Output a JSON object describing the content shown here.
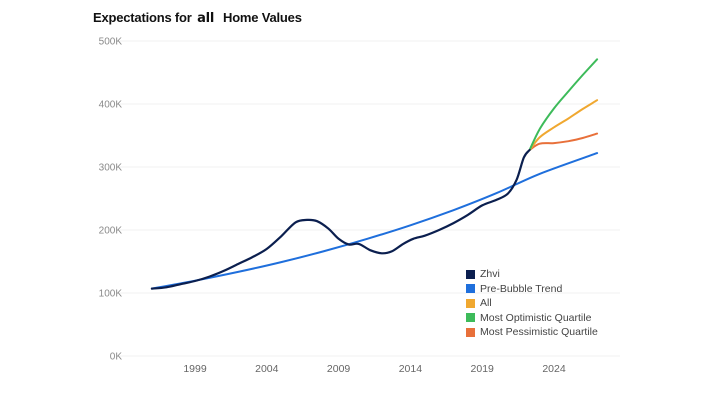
{
  "chart_data": {
    "type": "line",
    "title_part1": "Expectations for",
    "title_part2": "all",
    "title_part3": "Home Values",
    "xlabel": "",
    "ylabel": "",
    "xlim": [
      1996,
      2027
    ],
    "ylim": [
      0,
      500000
    ],
    "grid": true,
    "legend_position": "bottom-right",
    "yticks": [
      {
        "value": 500000,
        "label": "500K"
      },
      {
        "value": 400000,
        "label": "400K"
      },
      {
        "value": 300000,
        "label": "300K"
      },
      {
        "value": 200000,
        "label": "200K"
      },
      {
        "value": 100000,
        "label": "100K"
      },
      {
        "value": 0,
        "label": "0K"
      }
    ],
    "xticks": [
      {
        "value": 1999,
        "label": "1999"
      },
      {
        "value": 2004,
        "label": "2004"
      },
      {
        "value": 2009,
        "label": "2009"
      },
      {
        "value": 2014,
        "label": "2014"
      },
      {
        "value": 2019,
        "label": "2019"
      },
      {
        "value": 2024,
        "label": "2024"
      }
    ],
    "series": [
      {
        "name": "Zhvi",
        "color": "#0b1f4f",
        "points": [
          [
            1996.0,
            107000
          ],
          [
            1997.0,
            109000
          ],
          [
            1998.0,
            114000
          ],
          [
            1999.0,
            119000
          ],
          [
            2000.0,
            126000
          ],
          [
            2001.0,
            135000
          ],
          [
            2002.0,
            146000
          ],
          [
            2003.0,
            157000
          ],
          [
            2004.0,
            170000
          ],
          [
            2005.0,
            190000
          ],
          [
            2006.0,
            212000
          ],
          [
            2006.8,
            216000
          ],
          [
            2007.5,
            214000
          ],
          [
            2008.3,
            202000
          ],
          [
            2009.0,
            186000
          ],
          [
            2009.7,
            177000
          ],
          [
            2010.4,
            178000
          ],
          [
            2011.2,
            168000
          ],
          [
            2012.0,
            163000
          ],
          [
            2012.7,
            166000
          ],
          [
            2013.5,
            178000
          ],
          [
            2014.2,
            186000
          ],
          [
            2015.0,
            191000
          ],
          [
            2016.0,
            200000
          ],
          [
            2017.0,
            211000
          ],
          [
            2018.0,
            224000
          ],
          [
            2019.0,
            239000
          ],
          [
            2020.0,
            248000
          ],
          [
            2020.8,
            258000
          ],
          [
            2021.4,
            280000
          ],
          [
            2021.9,
            315000
          ],
          [
            2022.3,
            327000
          ]
        ]
      },
      {
        "name": "Pre-Bubble Trend",
        "color": "#1f6fdc",
        "points": [
          [
            1996.0,
            107000
          ],
          [
            1999.0,
            119500
          ],
          [
            2002.0,
            133500
          ],
          [
            2005.0,
            149000
          ],
          [
            2008.0,
            166500
          ],
          [
            2011.0,
            186000
          ],
          [
            2014.0,
            207500
          ],
          [
            2017.0,
            231500
          ],
          [
            2020.0,
            258500
          ],
          [
            2023.0,
            289000
          ],
          [
            2027.0,
            322000
          ]
        ]
      },
      {
        "name": "All",
        "color": "#f0a830",
        "points": [
          [
            2022.3,
            327000
          ],
          [
            2023.0,
            347000
          ],
          [
            2024.0,
            363000
          ],
          [
            2025.0,
            377000
          ],
          [
            2026.0,
            392000
          ],
          [
            2027.0,
            406000
          ]
        ]
      },
      {
        "name": "Most Optimistic Quartile",
        "color": "#3dbb5a",
        "points": [
          [
            2022.3,
            327000
          ],
          [
            2023.0,
            360000
          ],
          [
            2024.0,
            393000
          ],
          [
            2025.0,
            420000
          ],
          [
            2026.0,
            446000
          ],
          [
            2027.0,
            471000
          ]
        ]
      },
      {
        "name": "Most Pessimistic Quartile",
        "color": "#e8703a",
        "points": [
          [
            2022.3,
            327000
          ],
          [
            2023.0,
            337000
          ],
          [
            2024.0,
            338000
          ],
          [
            2025.0,
            341000
          ],
          [
            2026.0,
            346000
          ],
          [
            2027.0,
            353000
          ]
        ]
      }
    ]
  }
}
